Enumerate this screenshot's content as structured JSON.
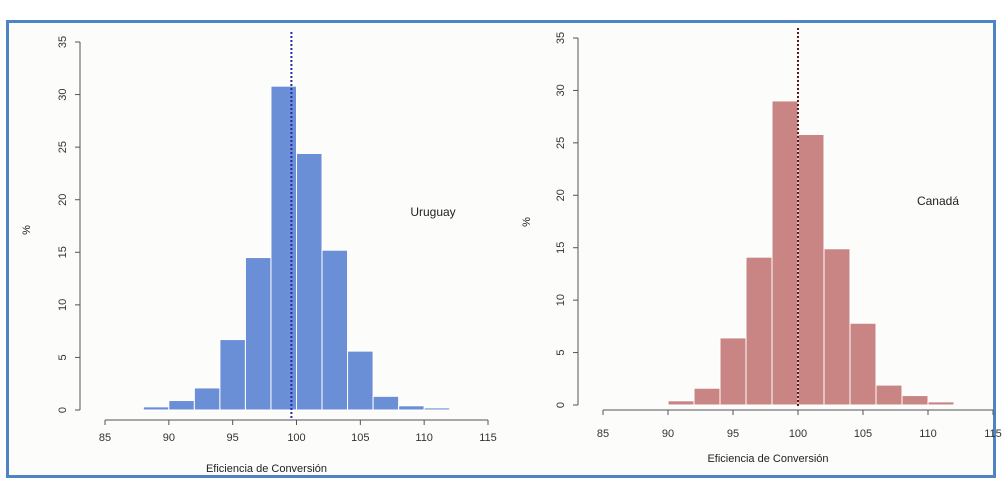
{
  "colors": {
    "frame": "#4f84c4",
    "axis": "#555555",
    "background": "#fcfcfb"
  },
  "chart_data": [
    {
      "type": "bar",
      "subtype": "histogram",
      "annotation": "Uruguay",
      "xlabel": "Eficiencia de Conversión",
      "ylabel": "%",
      "xlim": [
        85,
        115
      ],
      "ylim": [
        0,
        35
      ],
      "xticks": [
        "85",
        "90",
        "95",
        "100",
        "105",
        "110",
        "115"
      ],
      "yticks": [
        "0",
        "5",
        "10",
        "15",
        "20",
        "25",
        "30",
        "35"
      ],
      "bin_width": 2,
      "bins": [
        {
          "x0": 88,
          "x1": 90,
          "value": 0.3
        },
        {
          "x0": 90,
          "x1": 92,
          "value": 0.9
        },
        {
          "x0": 92,
          "x1": 94,
          "value": 2.1
        },
        {
          "x0": 94,
          "x1": 96,
          "value": 6.7
        },
        {
          "x0": 96,
          "x1": 98,
          "value": 14.5
        },
        {
          "x0": 98,
          "x1": 100,
          "value": 30.8
        },
        {
          "x0": 100,
          "x1": 102,
          "value": 24.4
        },
        {
          "x0": 102,
          "x1": 104,
          "value": 15.2
        },
        {
          "x0": 104,
          "x1": 106,
          "value": 5.6
        },
        {
          "x0": 106,
          "x1": 108,
          "value": 1.3
        },
        {
          "x0": 108,
          "x1": 110,
          "value": 0.4
        },
        {
          "x0": 110,
          "x1": 112,
          "value": 0.2
        }
      ],
      "reference_line": 99.6,
      "bar_color": "#6b8fd6",
      "line_color": "#2a2aa8"
    },
    {
      "type": "bar",
      "subtype": "histogram",
      "annotation": "Canadá",
      "xlabel": "Eficiencia de Conversión",
      "ylabel": "%",
      "xlim": [
        85,
        115
      ],
      "ylim": [
        0,
        35
      ],
      "xticks": [
        "85",
        "90",
        "95",
        "100",
        "105",
        "110",
        "115"
      ],
      "yticks": [
        "0",
        "5",
        "10",
        "15",
        "20",
        "25",
        "30",
        "35"
      ],
      "bin_width": 2,
      "bins": [
        {
          "x0": 88,
          "x1": 90,
          "value": 0.1
        },
        {
          "x0": 90,
          "x1": 92,
          "value": 0.4
        },
        {
          "x0": 92,
          "x1": 94,
          "value": 1.6
        },
        {
          "x0": 94,
          "x1": 96,
          "value": 6.4
        },
        {
          "x0": 96,
          "x1": 98,
          "value": 14.1
        },
        {
          "x0": 98,
          "x1": 100,
          "value": 29.0
        },
        {
          "x0": 100,
          "x1": 102,
          "value": 25.8
        },
        {
          "x0": 102,
          "x1": 104,
          "value": 14.9
        },
        {
          "x0": 104,
          "x1": 106,
          "value": 7.8
        },
        {
          "x0": 106,
          "x1": 108,
          "value": 1.9
        },
        {
          "x0": 108,
          "x1": 110,
          "value": 0.9
        },
        {
          "x0": 110,
          "x1": 112,
          "value": 0.3
        }
      ],
      "reference_line": 100,
      "bar_color": "#c98484",
      "line_color": "#5a1a1a"
    }
  ]
}
